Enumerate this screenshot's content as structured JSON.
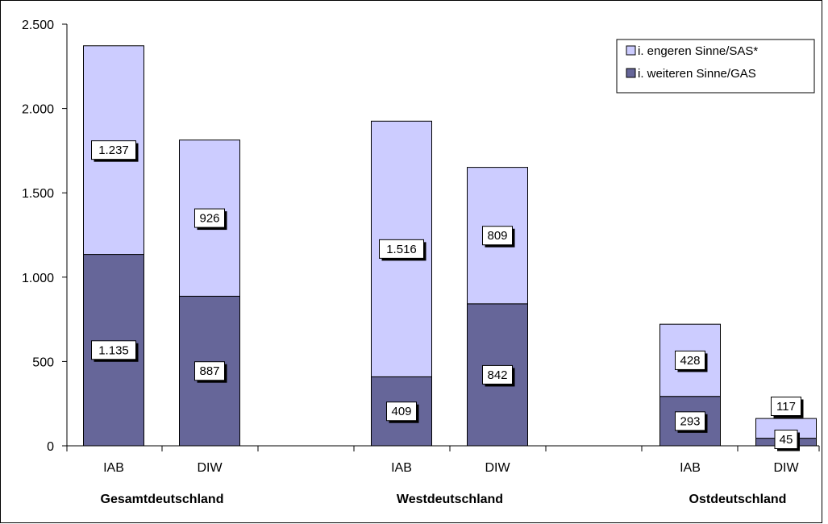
{
  "chart_data": {
    "type": "bar",
    "stacked": true,
    "groups": [
      "Gesamtdeutschland",
      "Westdeutschland",
      "Ostdeutschland"
    ],
    "categories": [
      "IAB",
      "DIW",
      "IAB",
      "DIW",
      "IAB",
      "DIW"
    ],
    "category_group": [
      0,
      0,
      1,
      1,
      2,
      2
    ],
    "series": [
      {
        "name": "i. weiteren Sinne/GAS",
        "values": [
          1135,
          887,
          409,
          842,
          293,
          45
        ],
        "labels": [
          "1.135",
          "887",
          "409",
          "842",
          "293",
          "45"
        ],
        "color": "#666699"
      },
      {
        "name": "i. engeren Sinne/SAS*",
        "values": [
          1237,
          926,
          1516,
          809,
          428,
          117
        ],
        "labels": [
          "1.237",
          "926",
          "1.516",
          "809",
          "428",
          "117"
        ],
        "color": "#ccccff"
      }
    ],
    "y_ticks": [
      0,
      500,
      1000,
      1500,
      2000,
      2500
    ],
    "y_tick_labels": [
      "0",
      "500",
      "1.000",
      "1.500",
      "2.000",
      "2.500"
    ],
    "ylim": [
      0,
      2500
    ],
    "grid": false,
    "legend": {
      "position": "top-right",
      "order": [
        1,
        0
      ]
    }
  }
}
